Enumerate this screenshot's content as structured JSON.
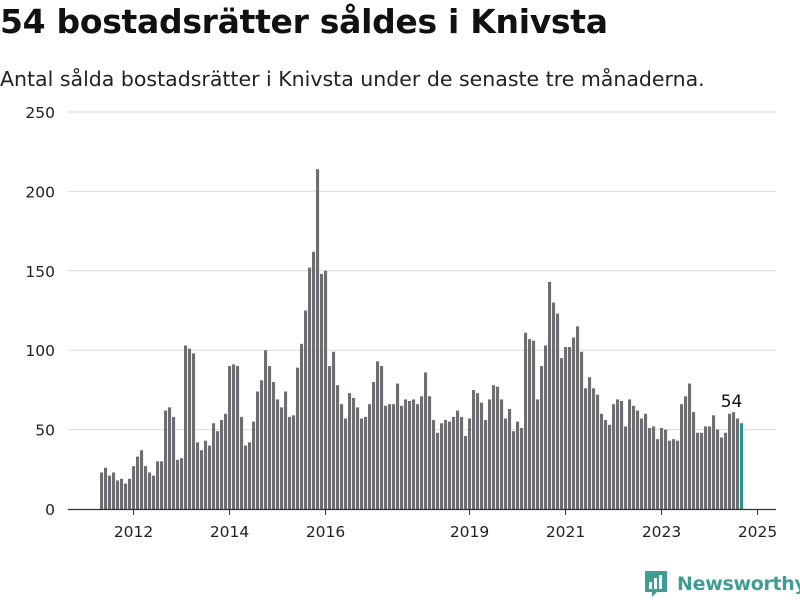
{
  "title": "54 bostadsrätter såldes i Knivsta",
  "subtitle": "Antal sålda bostadsrätter i Knivsta under de senaste tre månaderna.",
  "brand": "Newsworthy",
  "colors": {
    "bar": "#6e6d72",
    "highlight": "#24998a",
    "grid": "#d9d9d9",
    "brand": "#3f9e93"
  },
  "chart_data": {
    "type": "bar",
    "ylim": [
      0,
      250
    ],
    "yticks": [
      0,
      50,
      100,
      150,
      200,
      250
    ],
    "xtick_labels": [
      "2012",
      "2014",
      "2016",
      "2019",
      "2021",
      "2023",
      "2025"
    ],
    "xtick_positions": [
      8,
      32,
      56,
      92,
      116,
      140,
      164
    ],
    "grid": true,
    "annotation": "54",
    "highlight_last": true,
    "values": [
      23,
      26,
      21,
      23,
      18,
      19,
      16,
      19,
      27,
      33,
      37,
      27,
      23,
      21,
      30,
      30,
      62,
      64,
      58,
      31,
      32,
      103,
      101,
      98,
      42,
      37,
      43,
      40,
      54,
      49,
      56,
      60,
      90,
      91,
      90,
      58,
      40,
      42,
      55,
      74,
      81,
      100,
      90,
      80,
      69,
      64,
      74,
      58,
      59,
      89,
      104,
      125,
      152,
      162,
      214,
      148,
      150,
      90,
      99,
      78,
      66,
      57,
      73,
      70,
      64,
      57,
      58,
      66,
      80,
      93,
      90,
      65,
      66,
      66,
      79,
      65,
      69,
      68,
      69,
      66,
      71,
      86,
      71,
      56,
      48,
      54,
      56,
      55,
      58,
      62,
      58,
      46,
      57,
      75,
      73,
      67,
      56,
      69,
      78,
      77,
      69,
      57,
      63,
      49,
      55,
      51,
      111,
      107,
      106,
      69,
      90,
      103,
      143,
      130,
      123,
      95,
      102,
      102,
      108,
      115,
      99,
      76,
      83,
      76,
      72,
      60,
      56,
      53,
      66,
      69,
      68,
      52,
      69,
      65,
      62,
      57,
      60,
      51,
      52,
      44,
      51,
      50,
      43,
      44,
      43,
      66,
      71,
      79,
      61,
      48,
      48,
      52,
      52,
      59,
      50,
      45,
      48,
      60,
      61,
      57,
      54
    ]
  }
}
